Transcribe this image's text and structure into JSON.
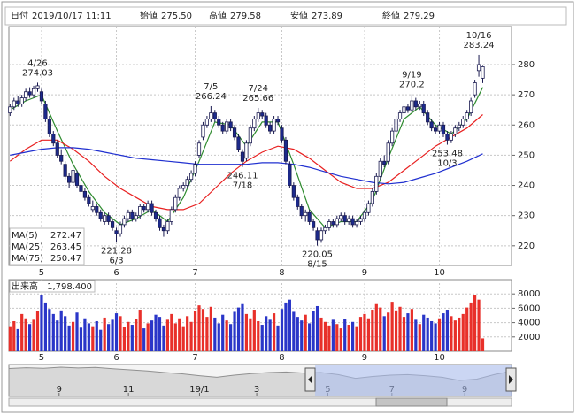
{
  "chart_data": {
    "type": "candlestick",
    "header": [
      {
        "label": "日付",
        "value": "2019/10/17 11:11",
        "color": "#000000"
      },
      {
        "label": "始値",
        "value": "275.50",
        "color": "#000000"
      },
      {
        "label": "高値",
        "value": "279.58",
        "color": "#e00000"
      },
      {
        "label": "安値",
        "value": "273.89",
        "color": "#008000"
      },
      {
        "label": "終値",
        "value": "279.29",
        "color": "#000000"
      }
    ],
    "xlim": [
      -0.3,
      127.3
    ],
    "ylim": [
      213.5,
      292.6
    ],
    "yticks": [
      220,
      230,
      240,
      250,
      260,
      270,
      280
    ],
    "xticks": [
      {
        "value": 8,
        "label": "5"
      },
      {
        "value": 27,
        "label": "6"
      },
      {
        "value": 47,
        "label": "7"
      },
      {
        "value": 69,
        "label": "8"
      },
      {
        "value": 90,
        "label": "9"
      },
      {
        "value": 109,
        "label": "10"
      }
    ],
    "grid": true,
    "up_color": "#ffffff",
    "down_color": "#1c2a8c",
    "ohlc": [
      [
        264,
        267,
        263,
        266
      ],
      [
        266,
        269,
        265,
        268
      ],
      [
        268,
        269.5,
        266,
        267
      ],
      [
        267,
        270,
        266,
        269
      ],
      [
        269,
        272,
        268,
        271
      ],
      [
        271,
        272.5,
        269,
        270
      ],
      [
        270,
        273,
        269,
        272
      ],
      [
        272,
        274.03,
        271,
        273
      ],
      [
        271,
        272,
        267,
        268
      ],
      [
        267,
        268,
        261,
        262
      ],
      [
        262,
        263,
        256,
        257
      ],
      [
        257,
        258,
        253,
        254
      ],
      [
        254,
        255,
        249,
        250
      ],
      [
        250,
        252,
        247,
        248
      ],
      [
        247,
        248,
        242,
        243
      ],
      [
        243,
        244,
        239,
        241
      ],
      [
        241,
        247,
        240,
        245
      ],
      [
        244,
        245,
        239,
        240
      ],
      [
        240,
        241,
        237,
        238
      ],
      [
        238,
        239,
        235,
        236
      ],
      [
        236,
        237,
        233,
        234
      ],
      [
        232,
        235,
        231,
        233
      ],
      [
        233,
        234,
        230,
        231
      ],
      [
        231,
        232,
        228,
        229
      ],
      [
        228,
        231,
        227,
        230
      ],
      [
        230,
        231,
        227,
        228
      ],
      [
        228,
        229,
        225,
        226
      ],
      [
        225,
        226,
        221.28,
        224
      ],
      [
        224,
        228,
        223,
        227
      ],
      [
        227,
        230,
        226,
        229
      ],
      [
        229,
        232,
        228,
        231
      ],
      [
        231,
        232,
        228,
        229
      ],
      [
        229,
        231,
        228,
        230
      ],
      [
        230,
        234,
        229,
        233
      ],
      [
        233,
        234,
        231,
        232
      ],
      [
        232,
        235,
        231,
        234
      ],
      [
        234,
        235,
        230,
        231
      ],
      [
        231,
        232,
        228,
        229
      ],
      [
        229,
        230,
        225,
        226
      ],
      [
        226,
        227,
        223,
        225
      ],
      [
        225,
        229,
        224,
        228
      ],
      [
        228,
        233,
        227,
        232
      ],
      [
        232,
        237,
        231,
        236
      ],
      [
        236,
        240,
        235,
        239
      ],
      [
        239,
        241,
        238,
        240
      ],
      [
        240,
        243,
        239,
        242
      ],
      [
        242,
        245,
        241,
        244
      ],
      [
        244,
        248,
        243,
        247
      ],
      [
        250,
        255,
        249,
        254
      ],
      [
        256,
        261,
        255,
        260
      ],
      [
        260,
        263,
        259,
        262
      ],
      [
        262,
        266.24,
        261,
        264
      ],
      [
        264,
        265,
        261,
        262
      ],
      [
        262,
        263,
        259,
        260
      ],
      [
        260,
        261,
        257,
        258
      ],
      [
        258,
        262,
        257,
        261
      ],
      [
        261,
        262,
        258,
        259
      ],
      [
        259,
        260,
        255,
        256
      ],
      [
        256,
        257,
        251,
        252
      ],
      [
        251,
        252,
        246.11,
        248
      ],
      [
        249,
        255,
        248,
        254
      ],
      [
        254,
        260,
        253,
        259
      ],
      [
        259,
        263,
        258,
        262
      ],
      [
        262,
        265.66,
        261,
        264
      ],
      [
        264,
        265,
        262,
        263
      ],
      [
        263,
        264,
        259,
        260
      ],
      [
        260,
        261,
        257,
        258
      ],
      [
        258,
        263,
        257,
        262
      ],
      [
        262,
        263,
        260,
        261
      ],
      [
        259,
        260,
        254,
        255
      ],
      [
        255,
        256,
        247,
        248
      ],
      [
        247,
        248,
        239,
        240
      ],
      [
        240,
        241,
        235,
        236
      ],
      [
        236,
        237,
        232,
        233
      ],
      [
        233,
        234,
        229,
        230
      ],
      [
        230,
        232,
        228,
        231
      ],
      [
        231,
        232,
        227,
        228
      ],
      [
        228,
        229,
        225,
        226
      ],
      [
        225,
        226,
        220.05,
        222
      ],
      [
        222,
        226,
        221,
        225
      ],
      [
        225,
        227,
        224,
        226
      ],
      [
        226,
        229,
        225,
        228
      ],
      [
        228,
        229,
        226,
        227
      ],
      [
        227,
        230,
        226,
        229
      ],
      [
        229,
        231,
        228,
        230
      ],
      [
        230,
        231,
        227,
        228
      ],
      [
        228,
        230,
        227,
        229
      ],
      [
        229,
        230,
        226,
        227
      ],
      [
        227,
        229,
        226,
        228
      ],
      [
        228,
        230,
        227,
        229
      ],
      [
        229,
        232,
        228,
        231
      ],
      [
        231,
        235,
        230,
        234
      ],
      [
        234,
        239,
        233,
        238
      ],
      [
        238,
        244,
        237,
        243
      ],
      [
        243,
        249,
        242,
        248
      ],
      [
        248,
        250,
        246,
        247
      ],
      [
        248,
        255,
        247,
        254
      ],
      [
        254,
        259,
        253,
        258
      ],
      [
        258,
        263,
        257,
        262
      ],
      [
        262,
        265,
        261,
        264
      ],
      [
        264,
        267,
        263,
        266
      ],
      [
        266,
        267,
        264,
        265
      ],
      [
        265,
        270.2,
        264,
        268
      ],
      [
        268,
        269,
        265,
        266
      ],
      [
        266,
        268,
        265,
        267
      ],
      [
        267,
        268,
        263,
        264
      ],
      [
        264,
        265,
        260,
        261
      ],
      [
        261,
        262,
        258,
        259
      ],
      [
        259,
        260,
        257,
        258
      ],
      [
        258,
        261,
        257,
        260
      ],
      [
        260,
        261,
        256,
        257
      ],
      [
        257,
        258,
        253.48,
        255
      ],
      [
        255,
        258,
        254,
        257
      ],
      [
        257,
        260,
        256,
        259
      ],
      [
        259,
        261,
        258,
        260
      ],
      [
        260,
        263,
        259,
        262
      ],
      [
        262,
        265,
        261,
        264
      ],
      [
        264,
        269,
        263,
        268
      ],
      [
        270,
        275,
        269,
        274
      ],
      [
        278,
        283.24,
        276,
        280
      ],
      [
        275.5,
        279.58,
        273.89,
        279.29
      ]
    ],
    "annotations": [
      {
        "label": "4/26",
        "x": 7,
        "value": 274.03
      },
      {
        "label": "6/3",
        "x": 27,
        "value": 221.28
      },
      {
        "label": "7/5",
        "x": 51,
        "value": 266.24
      },
      {
        "label": "7/18",
        "x": 59,
        "value": 246.11
      },
      {
        "label": "7/24",
        "x": 63,
        "value": 265.66
      },
      {
        "label": "8/15",
        "x": 78,
        "value": 220.05
      },
      {
        "label": "9/19",
        "x": 102,
        "value": 270.2
      },
      {
        "label": "10/3",
        "x": 111,
        "value": 253.48
      },
      {
        "label": "10/16",
        "x": 119,
        "value": 283.24
      }
    ],
    "series": [
      {
        "name": "MA(5)",
        "color": "#2e8b2e",
        "x": [
          0,
          4,
          8,
          12,
          16,
          20,
          24,
          28,
          32,
          36,
          40,
          44,
          48,
          52,
          56,
          60,
          64,
          68,
          72,
          76,
          80,
          84,
          88,
          92,
          96,
          100,
          104,
          108,
          112,
          116,
          120
        ],
        "values": [
          265,
          268,
          270,
          258,
          247,
          238,
          231,
          227,
          229,
          232,
          228,
          236,
          248,
          261,
          260,
          253,
          261,
          261,
          247,
          232,
          226,
          228,
          228,
          235,
          249,
          262,
          266,
          260,
          257,
          262,
          272.47
        ]
      },
      {
        "name": "MA(25)",
        "color": "#e82020",
        "x": [
          0,
          4,
          8,
          12,
          16,
          20,
          24,
          28,
          32,
          36,
          40,
          44,
          48,
          52,
          56,
          60,
          64,
          68,
          72,
          76,
          80,
          84,
          88,
          92,
          96,
          100,
          104,
          108,
          112,
          116,
          120
        ],
        "values": [
          248,
          252,
          255,
          255,
          252,
          248,
          243,
          239,
          236,
          233,
          232,
          232,
          234,
          239,
          244,
          248,
          251,
          253,
          252,
          249,
          245,
          241,
          239,
          239,
          241,
          245,
          249,
          253,
          256,
          259,
          263.45
        ]
      },
      {
        "name": "MA(75)",
        "color": "#2030d0",
        "x": [
          0,
          4,
          8,
          12,
          16,
          20,
          24,
          28,
          32,
          36,
          40,
          44,
          48,
          52,
          56,
          60,
          64,
          68,
          72,
          76,
          80,
          84,
          88,
          92,
          96,
          100,
          104,
          108,
          112,
          116,
          120
        ],
        "values": [
          250,
          251,
          252,
          252.5,
          252.5,
          252,
          251,
          250,
          249,
          248.5,
          248,
          247.5,
          247,
          247,
          247,
          247,
          247.5,
          247.5,
          247,
          246,
          244.5,
          243,
          242,
          241,
          240.5,
          241,
          242.5,
          244,
          246,
          248,
          250.47
        ]
      }
    ],
    "volume": {
      "name": "出来高",
      "value_label": "1,798.400",
      "ylim": [
        0,
        10000
      ],
      "yticks": [
        2000,
        4000,
        6000,
        8000
      ],
      "up_color": "#e8302a",
      "down_color": "#2a36c8",
      "values": [
        3500,
        4200,
        3100,
        5200,
        4600,
        3800,
        4400,
        5600,
        7900,
        6800,
        5900,
        5200,
        4300,
        5700,
        4900,
        3600,
        4100,
        5400,
        3300,
        4600,
        3900,
        3500,
        4200,
        3000,
        4700,
        3800,
        4400,
        5300,
        4900,
        3400,
        4100,
        3700,
        4500,
        5800,
        3200,
        3900,
        4300,
        5100,
        4800,
        3600,
        4400,
        5200,
        3900,
        4600,
        3500,
        4900,
        4100,
        5600,
        6400,
        5900,
        4800,
        6200,
        4700,
        3900,
        5100,
        4300,
        3800,
        5500,
        6100,
        6700,
        5200,
        4600,
        5800,
        4200,
        3700,
        4900,
        4400,
        5300,
        3600,
        5900,
        6800,
        7200,
        5500,
        4800,
        4300,
        5100,
        3900,
        5600,
        6300,
        4700,
        4100,
        3600,
        4400,
        3800,
        3200,
        4500,
        3700,
        4100,
        3500,
        4800,
        5200,
        4600,
        5800,
        6700,
        6100,
        4900,
        5400,
        6900,
        5700,
        6200,
        4800,
        5300,
        5900,
        4400,
        3800,
        5100,
        4700,
        4200,
        3900,
        4600,
        5300,
        5800,
        4900,
        4300,
        4700,
        5200,
        6100,
        6800,
        7900,
        7200,
        1798.4
      ]
    },
    "navigator": {
      "xlim": [
        0,
        29
      ],
      "ylim": [
        180,
        300
      ],
      "xticks": [
        {
          "value": 2.9,
          "label": "9"
        },
        {
          "value": 6.9,
          "label": "11"
        },
        {
          "value": 11,
          "label": "19/1"
        },
        {
          "value": 14.3,
          "label": "3"
        },
        {
          "value": 18.4,
          "label": "5"
        },
        {
          "value": 22.1,
          "label": "7"
        },
        {
          "value": 26.3,
          "label": "9"
        }
      ],
      "values": [
        285,
        288,
        286,
        290,
        287,
        289,
        284,
        280,
        276,
        270,
        265,
        258,
        252,
        260,
        266,
        270,
        272,
        268,
        270,
        262,
        248,
        255,
        260,
        262,
        258,
        252,
        240,
        245,
        262,
        275
      ]
    }
  }
}
